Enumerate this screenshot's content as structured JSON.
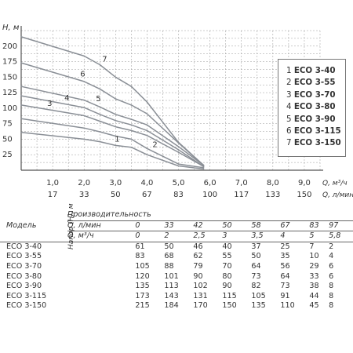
{
  "chart_data": {
    "type": "line",
    "ylabel": "H, м",
    "xlabel_primary": "Q, м³/ч",
    "xlabel_secondary": "Q, л/мин",
    "y_ticks": [
      25,
      50,
      75,
      100,
      125,
      150,
      175,
      200
    ],
    "x_ticks_primary": [
      "1,0",
      "2,0",
      "3,0",
      "4,0",
      "5,0",
      "6,0",
      "7,0",
      "8,0",
      "9,0"
    ],
    "x_ticks_secondary": [
      "17",
      "33",
      "50",
      "67",
      "83",
      "100",
      "117",
      "133",
      "150"
    ],
    "xlim": [
      0,
      9.5
    ],
    "ylim": [
      0,
      225
    ],
    "grid": true,
    "legend_position": "right",
    "q_m3h": [
      0,
      2,
      2.5,
      3,
      3.5,
      4,
      5,
      5.8
    ],
    "series": [
      {
        "id": "1",
        "name": "ECO 3-40",
        "values": [
          61,
          50,
          46,
          40,
          37,
          25,
          7,
          2
        ]
      },
      {
        "id": "2",
        "name": "ECO 3-55",
        "values": [
          83,
          68,
          62,
          55,
          50,
          35,
          10,
          4
        ]
      },
      {
        "id": "3",
        "name": "ECO 3-70",
        "values": [
          105,
          88,
          79,
          70,
          64,
          56,
          29,
          6
        ]
      },
      {
        "id": "4",
        "name": "ECO 3-80",
        "values": [
          120,
          101,
          90,
          80,
          73,
          64,
          33,
          6
        ]
      },
      {
        "id": "5",
        "name": "ECO 3-90",
        "values": [
          135,
          113,
          102,
          90,
          82,
          73,
          38,
          8
        ]
      },
      {
        "id": "6",
        "name": "ECO 3-115",
        "values": [
          173,
          143,
          131,
          115,
          105,
          91,
          44,
          8
        ]
      },
      {
        "id": "7",
        "name": "ECO 3-150",
        "values": [
          215,
          184,
          170,
          150,
          135,
          110,
          45,
          8
        ]
      }
    ]
  },
  "table": {
    "header_title": "Производительность",
    "model_header": "Модель",
    "head_label": "Напор (Н), м",
    "row_lmin_label": "Q, л/мин",
    "row_m3h_label": "Q, м³/ч",
    "lmin": [
      "0",
      "33",
      "42",
      "50",
      "58",
      "67",
      "83",
      "97"
    ],
    "m3h": [
      "0",
      "2",
      "2,5",
      "3",
      "3,5",
      "4",
      "5",
      "5,8"
    ],
    "rows": [
      {
        "model": "ECO 3-40",
        "values": [
          "61",
          "50",
          "46",
          "40",
          "37",
          "25",
          "7",
          "2"
        ]
      },
      {
        "model": "ECO 3-55",
        "values": [
          "83",
          "68",
          "62",
          "55",
          "50",
          "35",
          "10",
          "4"
        ]
      },
      {
        "model": "ECO 3-70",
        "values": [
          "105",
          "88",
          "79",
          "70",
          "64",
          "56",
          "29",
          "6"
        ]
      },
      {
        "model": "ECO 3-80",
        "values": [
          "120",
          "101",
          "90",
          "80",
          "73",
          "64",
          "33",
          "6"
        ]
      },
      {
        "model": "ECO 3-90",
        "values": [
          "135",
          "113",
          "102",
          "90",
          "82",
          "73",
          "38",
          "8"
        ]
      },
      {
        "model": "ECO 3-115",
        "values": [
          "173",
          "143",
          "131",
          "115",
          "105",
          "91",
          "44",
          "8"
        ]
      },
      {
        "model": "ECO 3-150",
        "values": [
          "215",
          "184",
          "170",
          "150",
          "135",
          "110",
          "45",
          "8"
        ]
      }
    ]
  },
  "colors": {
    "curve": "#8a8f96",
    "grid": "#999999",
    "axis": "#555555",
    "text": "#333333"
  }
}
